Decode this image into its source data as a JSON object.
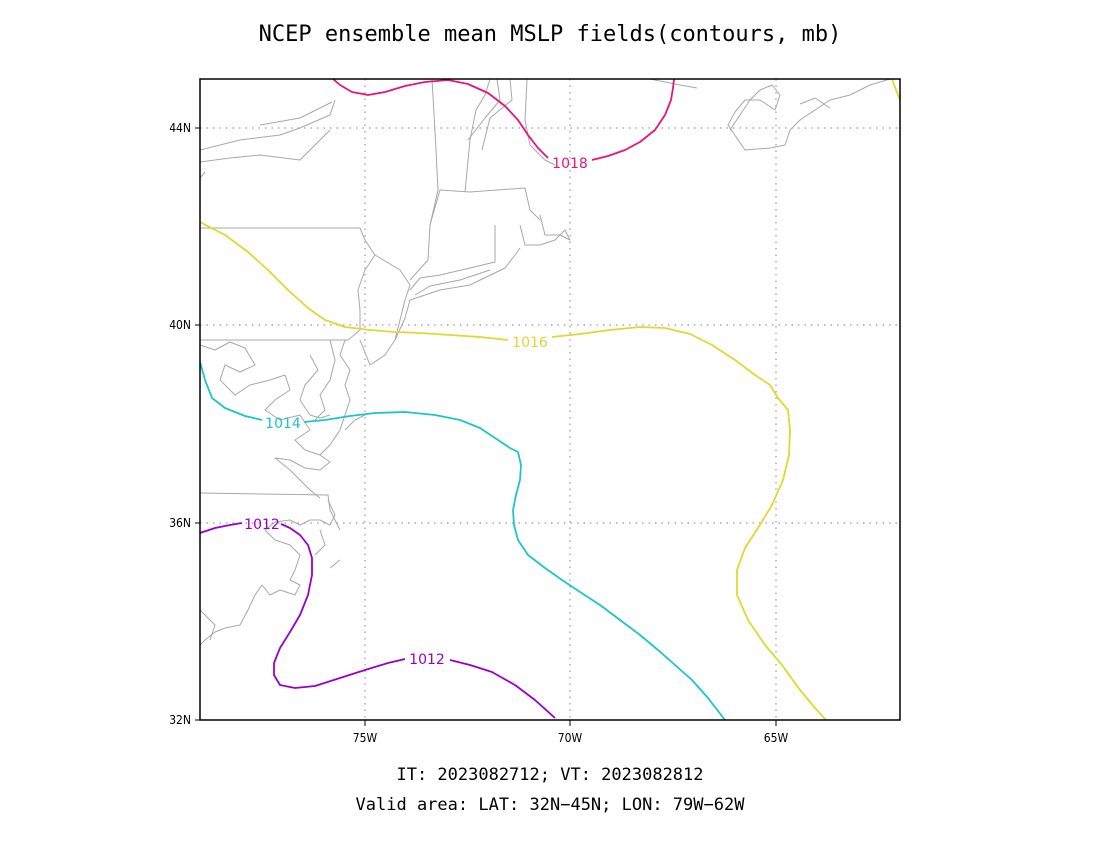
{
  "title": "NCEP ensemble mean MSLP fields(contours, mb)",
  "footer": {
    "times": "IT: 2023082712; VT: 2023082812",
    "area": "Valid area: LAT: 32N−45N; LON: 79W−62W"
  },
  "axes": {
    "lon_range": [
      -79,
      -62
    ],
    "lat_range": [
      32,
      45
    ],
    "x_ticks": [
      {
        "value": -75,
        "label": "75W"
      },
      {
        "value": -70,
        "label": "70W"
      },
      {
        "value": -65,
        "label": "65W"
      }
    ],
    "y_ticks": [
      {
        "value": 32,
        "label": "32N"
      },
      {
        "value": 36,
        "label": "36N"
      },
      {
        "value": 40,
        "label": "40N"
      },
      {
        "value": 44,
        "label": "44N"
      }
    ],
    "grid": true
  },
  "colors": {
    "c1012": "#9900cc",
    "c1014": "#1cc6c6",
    "c1016": "#e3d72f",
    "c1018": "#e8147a",
    "coast": "#a8a8a8"
  },
  "contours": {
    "label_1018": "1018",
    "label_1016": "1016",
    "label_1014": "1014",
    "label_1012a": "1012",
    "label_1012b": "1012"
  }
}
